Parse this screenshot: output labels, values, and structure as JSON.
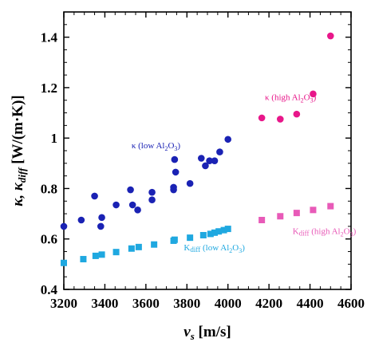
{
  "chart_data": {
    "type": "scatter",
    "xlabel": "v_s [m/s]",
    "ylabel": "κ, κ_diff [W/(m·K)]",
    "xlim": [
      3200,
      4600
    ],
    "ylim": [
      0.4,
      1.5
    ],
    "x_ticks": [
      "3200",
      "3400",
      "3600",
      "3800",
      "4000",
      "4200",
      "4400",
      "4600"
    ],
    "y_ticks": [
      "0.4",
      "0.6",
      "0.8",
      "1",
      "1.2",
      "1.4"
    ],
    "grid": false,
    "legend": "none",
    "series": [
      {
        "name": "κ (low Al2O3)",
        "marker": "circle",
        "color": "#1a22b4",
        "label_position": [
          3530,
          0.96
        ],
        "points": [
          [
            3200,
            0.65
          ],
          [
            3285,
            0.675
          ],
          [
            3350,
            0.77
          ],
          [
            3380,
            0.65
          ],
          [
            3385,
            0.685
          ],
          [
            3455,
            0.735
          ],
          [
            3525,
            0.795
          ],
          [
            3535,
            0.735
          ],
          [
            3560,
            0.715
          ],
          [
            3630,
            0.785
          ],
          [
            3630,
            0.755
          ],
          [
            3735,
            0.795
          ],
          [
            3735,
            0.805
          ],
          [
            3740,
            0.915
          ],
          [
            3745,
            0.865
          ],
          [
            3815,
            0.82
          ],
          [
            3870,
            0.92
          ],
          [
            3890,
            0.89
          ],
          [
            3910,
            0.91
          ],
          [
            3935,
            0.91
          ],
          [
            3960,
            0.945
          ],
          [
            4000,
            0.995
          ]
        ]
      },
      {
        "name": "κ (high Al2O3)",
        "marker": "circle",
        "color": "#e8178a",
        "label_position": [
          4180,
          1.15
        ],
        "points": [
          [
            4165,
            1.08
          ],
          [
            4255,
            1.075
          ],
          [
            4335,
            1.095
          ],
          [
            4415,
            1.175
          ],
          [
            4500,
            1.405
          ]
        ]
      },
      {
        "name": "κdiff (low Al2O3)",
        "marker": "square",
        "color": "#1fa8e0",
        "label_position": [
          3785,
          0.555
        ],
        "points": [
          [
            3200,
            0.505
          ],
          [
            3295,
            0.52
          ],
          [
            3355,
            0.533
          ],
          [
            3385,
            0.538
          ],
          [
            3455,
            0.548
          ],
          [
            3530,
            0.562
          ],
          [
            3565,
            0.568
          ],
          [
            3640,
            0.578
          ],
          [
            3735,
            0.593
          ],
          [
            3740,
            0.597
          ],
          [
            3815,
            0.605
          ],
          [
            3880,
            0.615
          ],
          [
            3915,
            0.62
          ],
          [
            3935,
            0.625
          ],
          [
            3955,
            0.63
          ],
          [
            3980,
            0.635
          ],
          [
            4000,
            0.64
          ]
        ]
      },
      {
        "name": "κdiff (high Al2O3)",
        "marker": "square",
        "color": "#e85ab8",
        "label_position": [
          4315,
          0.62
        ],
        "points": [
          [
            4165,
            0.675
          ],
          [
            4255,
            0.69
          ],
          [
            4335,
            0.703
          ],
          [
            4415,
            0.715
          ],
          [
            4500,
            0.73
          ]
        ]
      }
    ]
  }
}
